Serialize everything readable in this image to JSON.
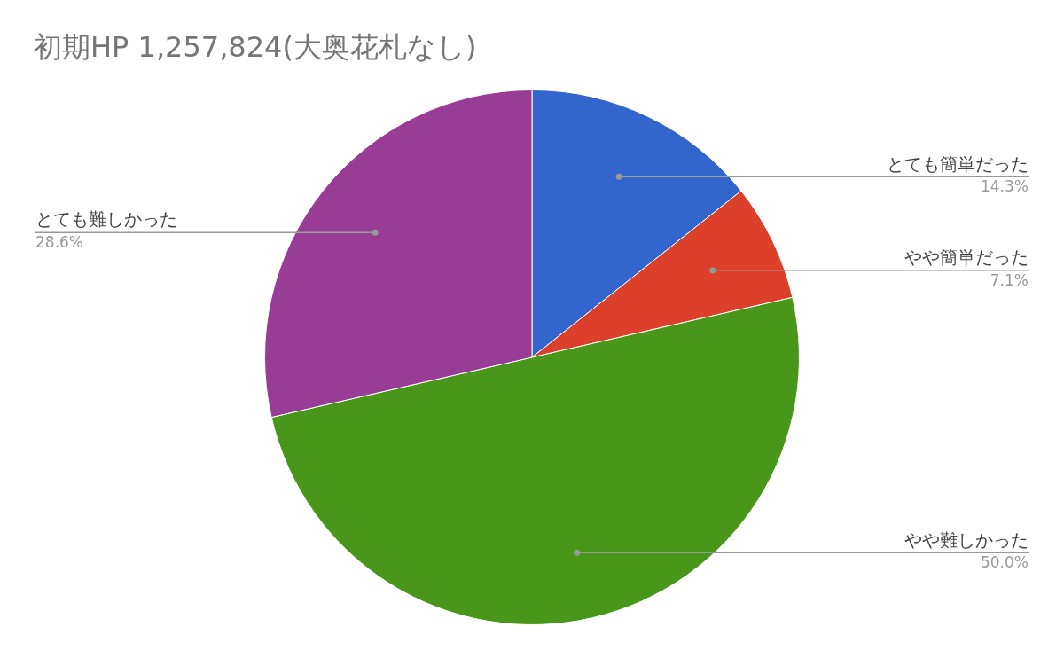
{
  "chart_data": {
    "type": "pie",
    "title": "初期HP 1,257,824(大奥花札なし)",
    "categories": [
      "とても簡単だった",
      "やや簡単だった",
      "やや難しかった",
      "とても難しかった"
    ],
    "values": [
      14.3,
      7.1,
      50.0,
      28.6
    ],
    "value_labels": [
      "14.3%",
      "7.1%",
      "50.0%",
      "28.6%"
    ],
    "colors": [
      "#3366cc",
      "#dc3f2a",
      "#48971a",
      "#993c96"
    ]
  }
}
